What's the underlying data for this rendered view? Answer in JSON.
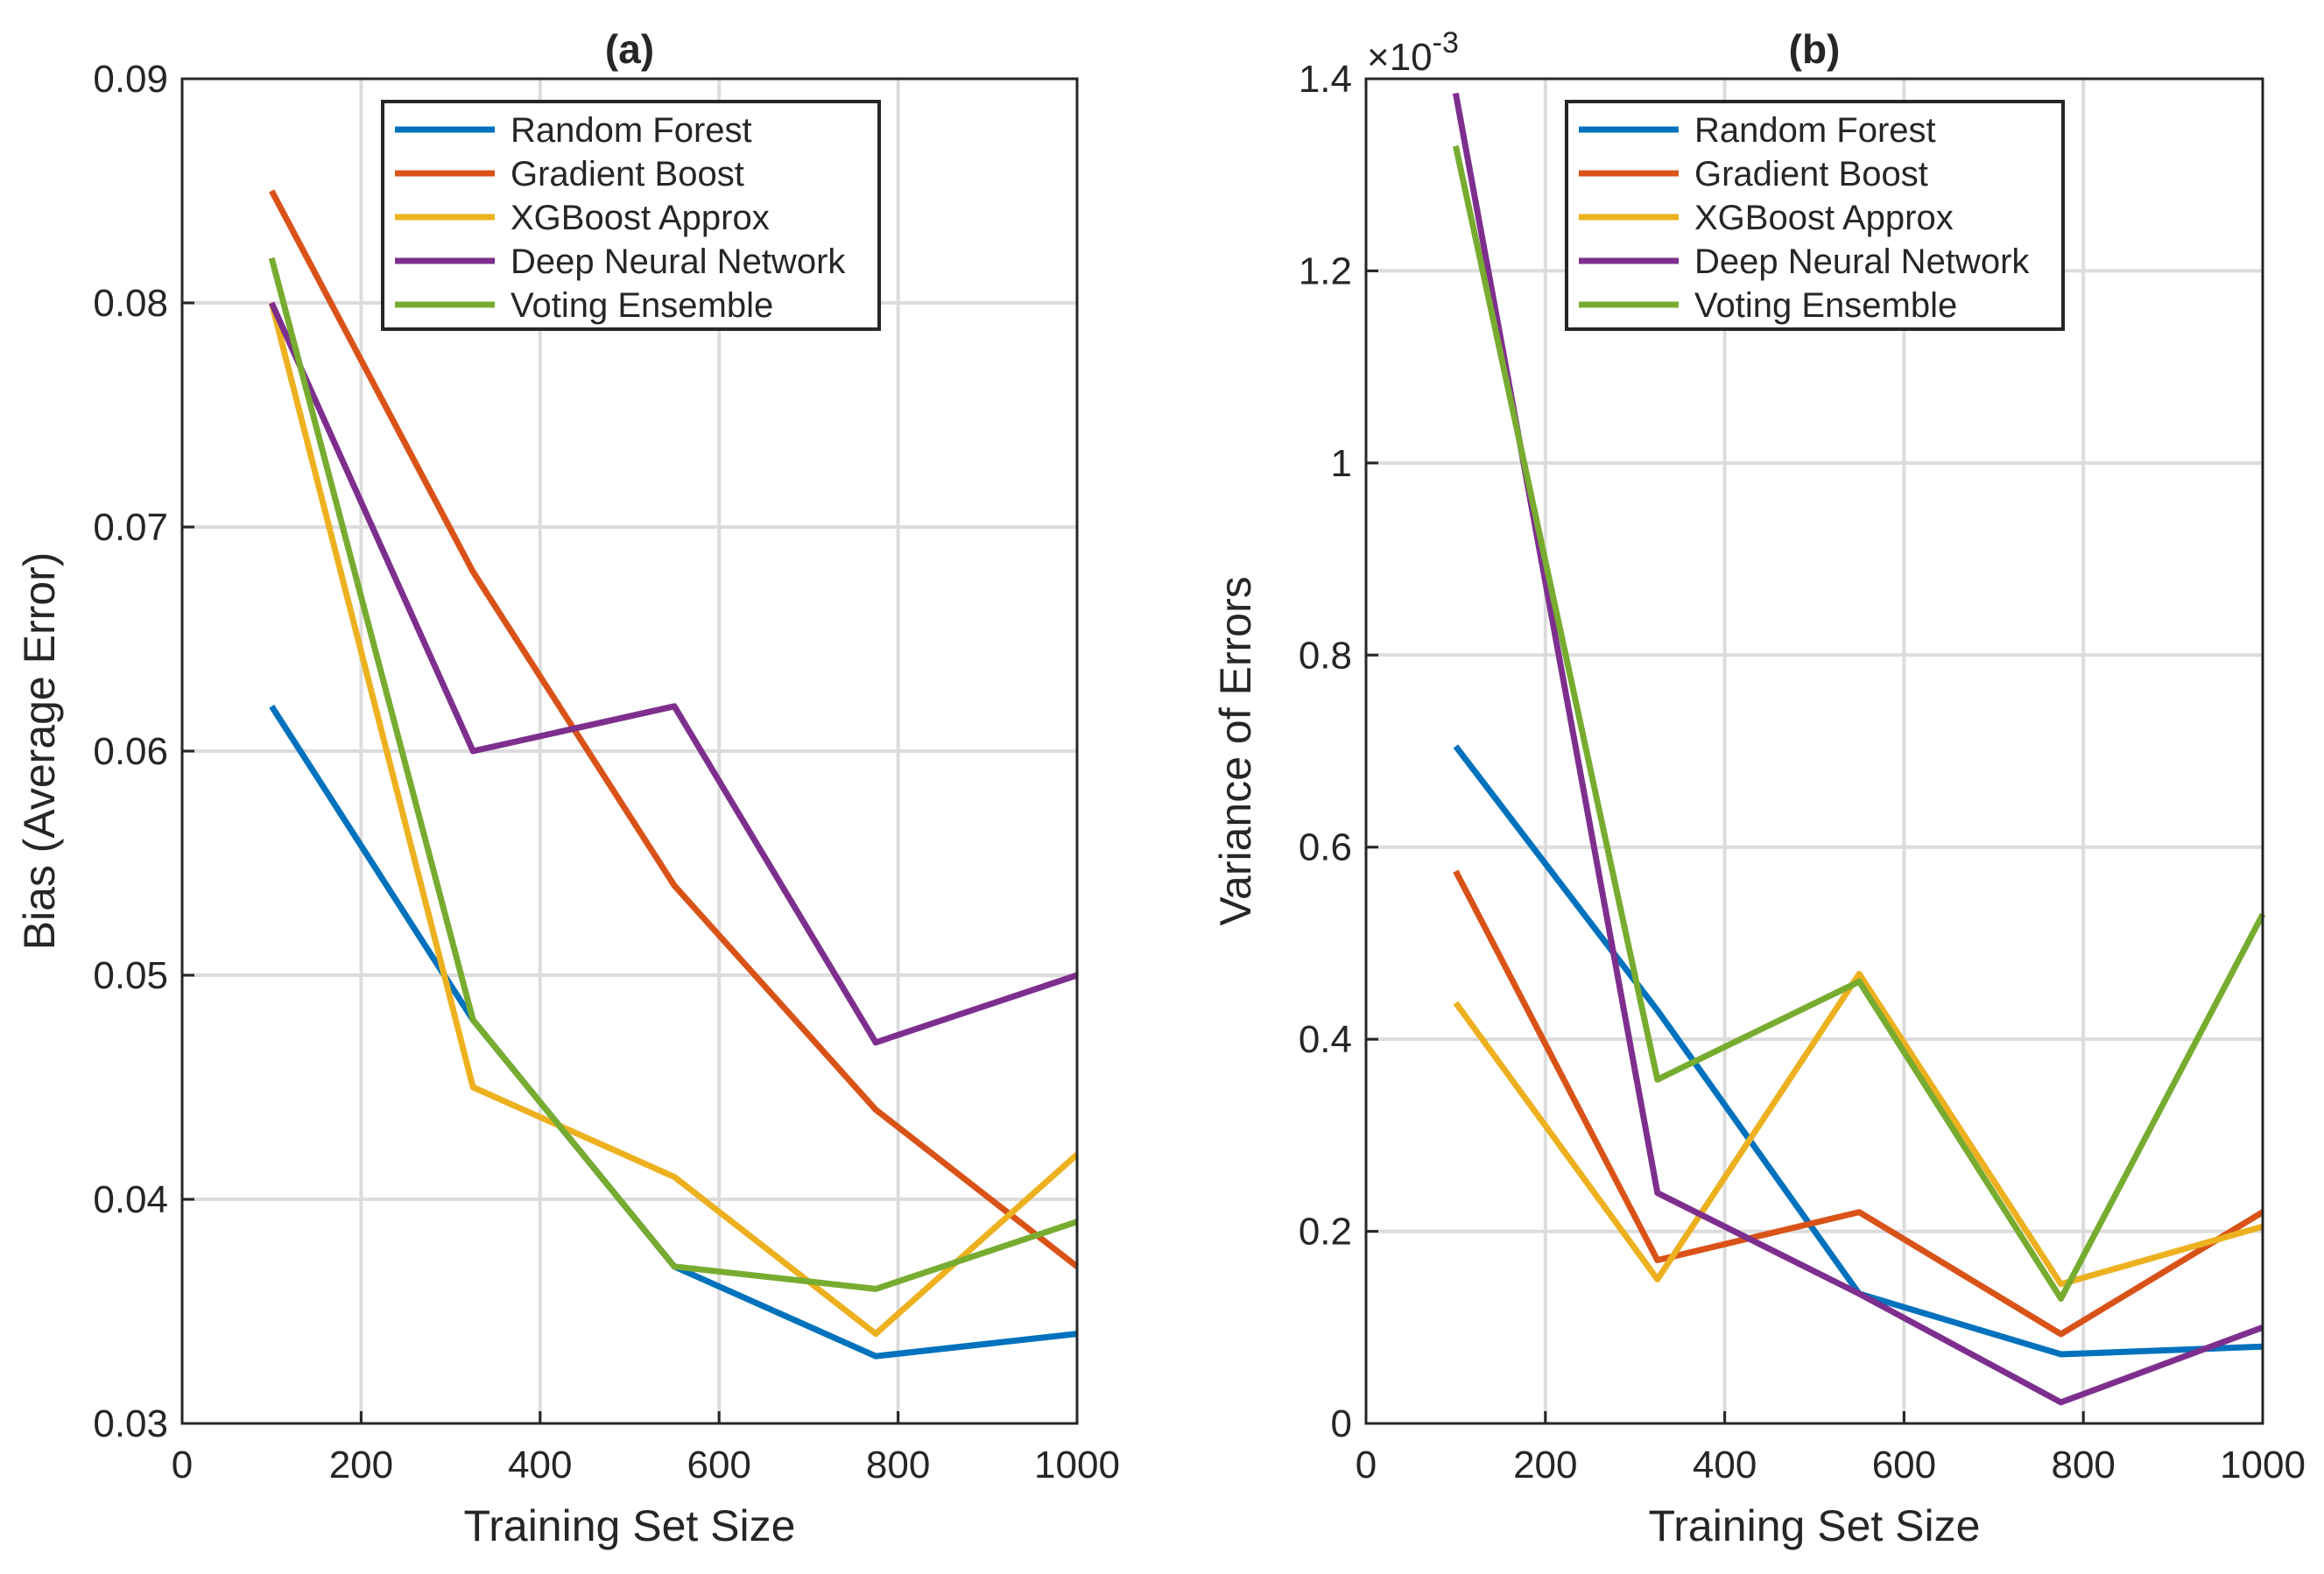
{
  "colors": {
    "Random Forest": "#0072BD",
    "Gradient Boost": "#D95319",
    "XGBoost Approx": "#EDB120",
    "Deep Neural Network": "#7E2F8E",
    "Voting Ensemble": "#77AC30"
  },
  "chart_data": [
    {
      "type": "line",
      "title": "(a)",
      "xlabel": "Training Set Size",
      "ylabel": "Bias (Average Error)",
      "xlim": [
        0,
        1000
      ],
      "ylim": [
        0.03,
        0.09
      ],
      "xticks": [
        0,
        200,
        400,
        600,
        800,
        1000
      ],
      "xtick_labels": [
        "0",
        "200",
        "400",
        "600",
        "800",
        "1000"
      ],
      "yticks": [
        0.03,
        0.04,
        0.05,
        0.06,
        0.07,
        0.08,
        0.09
      ],
      "ytick_labels": [
        "0.03",
        "0.04",
        "0.05",
        "0.06",
        "0.07",
        "0.08",
        "0.09"
      ],
      "exponent_label": "",
      "grid": true,
      "legend_position": "top-right",
      "x": [
        100,
        325,
        550,
        775,
        1000
      ],
      "series": [
        {
          "name": "Random Forest",
          "values": [
            0.062,
            0.048,
            0.037,
            0.033,
            0.034
          ]
        },
        {
          "name": "Gradient Boost",
          "values": [
            0.085,
            0.068,
            0.054,
            0.044,
            0.037
          ]
        },
        {
          "name": "XGBoost Approx",
          "values": [
            0.08,
            0.045,
            0.041,
            0.034,
            0.042
          ]
        },
        {
          "name": "Deep Neural Network",
          "values": [
            0.08,
            0.06,
            0.062,
            0.047,
            0.05
          ]
        },
        {
          "name": "Voting Ensemble",
          "values": [
            0.082,
            0.048,
            0.037,
            0.036,
            0.039
          ]
        }
      ]
    },
    {
      "type": "line",
      "title": "(b)",
      "xlabel": "Training Set Size",
      "ylabel": "Variance of Errors",
      "xlim": [
        0,
        1000
      ],
      "ylim": [
        0,
        1.4
      ],
      "xticks": [
        0,
        200,
        400,
        600,
        800,
        1000
      ],
      "xtick_labels": [
        "0",
        "200",
        "400",
        "600",
        "800",
        "1000"
      ],
      "yticks": [
        0,
        0.2,
        0.4,
        0.6,
        0.8,
        1,
        1.2,
        1.4
      ],
      "ytick_labels": [
        "0",
        "0.2",
        "0.4",
        "0.6",
        "0.8",
        "1",
        "1.2",
        "1.4"
      ],
      "exponent_base": "×10",
      "exponent_power": "-3",
      "grid": true,
      "legend_position": "top-right",
      "x": [
        100,
        325,
        550,
        775,
        1000
      ],
      "series": [
        {
          "name": "Random Forest",
          "values": [
            0.705,
            0.43,
            0.135,
            0.072,
            0.08
          ]
        },
        {
          "name": "Gradient Boost",
          "values": [
            0.575,
            0.17,
            0.22,
            0.093,
            0.22
          ]
        },
        {
          "name": "XGBoost Approx",
          "values": [
            0.438,
            0.15,
            0.468,
            0.145,
            0.205
          ]
        },
        {
          "name": "Deep Neural Network",
          "values": [
            1.385,
            0.24,
            0.135,
            0.022,
            0.1
          ]
        },
        {
          "name": "Voting Ensemble",
          "values": [
            1.33,
            0.358,
            0.46,
            0.13,
            0.53
          ]
        }
      ]
    }
  ]
}
